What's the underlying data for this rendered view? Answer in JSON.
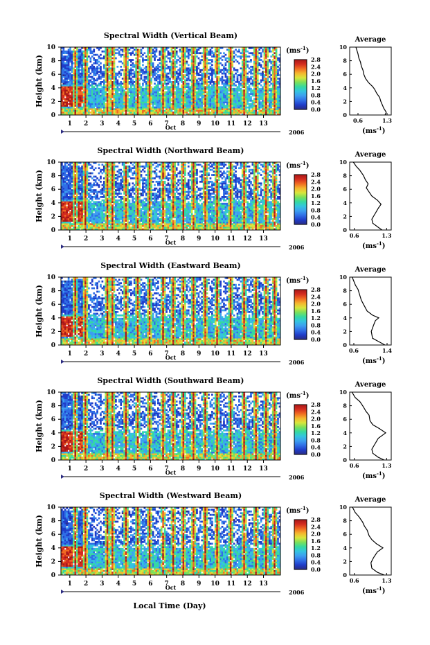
{
  "chart_data": {
    "type": "heatmap",
    "xlabel": "Local Time (Day)",
    "x_ticks": [
      "1",
      "2",
      "3",
      "4",
      "5",
      "6",
      "7",
      "8",
      "9",
      "10",
      "11",
      "12",
      "13"
    ],
    "month_label": "Oct",
    "year_label": "2006",
    "ylabel": "Height (km)",
    "y_ticks": [
      "0",
      "2",
      "4",
      "6",
      "8",
      "10"
    ],
    "ylim": [
      0,
      10
    ],
    "colorbar_unit": "(ms",
    "colorbar_unit_exp": "-1",
    "colorbar_unit_close": ")",
    "colorbar_ticks": [
      "0.0",
      "0.4",
      "0.8",
      "1.2",
      "1.6",
      "2.0",
      "2.4",
      "2.8"
    ],
    "colorbar_range": [
      0,
      2.8
    ],
    "colors": [
      "#2b2b80",
      "#1f3cc8",
      "#2f6ee6",
      "#3d9ef0",
      "#33c4e0",
      "#35d9a0",
      "#7be05a",
      "#d9e63c",
      "#f5b52e",
      "#f06a22",
      "#d42b1f",
      "#a81818"
    ],
    "avg_title": "Average",
    "avg_xlabel": "(ms",
    "avg_xlabel_exp": "-1",
    "avg_xlabel_close": ")",
    "panels": [
      {
        "title": "Spectral Width (Vertical Beam)",
        "avg_xticks": [
          "0.6",
          "1.3"
        ],
        "avg_xlim": [
          0.4,
          1.4
        ],
        "avg_profile": [
          [
            1.25,
            0
          ],
          [
            1.28,
            0.4
          ],
          [
            1.22,
            1.0
          ],
          [
            1.15,
            2.0
          ],
          [
            1.12,
            2.6
          ],
          [
            1.05,
            3.2
          ],
          [
            1.0,
            3.8
          ],
          [
            0.95,
            4.2
          ],
          [
            0.85,
            4.8
          ],
          [
            0.78,
            5.4
          ],
          [
            0.74,
            6.0
          ],
          [
            0.72,
            6.6
          ],
          [
            0.68,
            7.2
          ],
          [
            0.66,
            7.8
          ],
          [
            0.62,
            8.4
          ],
          [
            0.6,
            9.0
          ],
          [
            0.55,
            10
          ]
        ]
      },
      {
        "title": "Spectral Width (Northward Beam)",
        "avg_xticks": [
          "0.6",
          "1.3"
        ],
        "avg_xlim": [
          0.5,
          1.4
        ],
        "avg_profile": [
          [
            1.2,
            0
          ],
          [
            1.12,
            0.4
          ],
          [
            1.0,
            1.0
          ],
          [
            0.98,
            1.6
          ],
          [
            1.05,
            2.4
          ],
          [
            1.12,
            3.2
          ],
          [
            1.18,
            3.8
          ],
          [
            1.1,
            4.4
          ],
          [
            0.98,
            5.0
          ],
          [
            0.92,
            5.6
          ],
          [
            0.86,
            6.2
          ],
          [
            0.9,
            6.8
          ],
          [
            0.84,
            7.4
          ],
          [
            0.8,
            8.0
          ],
          [
            0.72,
            8.8
          ],
          [
            0.64,
            9.4
          ],
          [
            0.58,
            10
          ]
        ]
      },
      {
        "title": "Spectral Width (Eastward Beam)",
        "avg_xticks": [
          "0.6",
          "1.4"
        ],
        "avg_xlim": [
          0.5,
          1.5
        ],
        "avg_profile": [
          [
            1.35,
            0
          ],
          [
            1.2,
            0.5
          ],
          [
            1.05,
            1.0
          ],
          [
            1.02,
            2.0
          ],
          [
            1.08,
            3.0
          ],
          [
            1.12,
            3.6
          ],
          [
            1.2,
            4.0
          ],
          [
            1.05,
            4.4
          ],
          [
            0.92,
            5.0
          ],
          [
            0.85,
            5.8
          ],
          [
            0.78,
            6.6
          ],
          [
            0.74,
            7.4
          ],
          [
            0.7,
            8.2
          ],
          [
            0.64,
            8.8
          ],
          [
            0.6,
            9.4
          ],
          [
            0.56,
            10
          ]
        ]
      },
      {
        "title": "Spectral Width (Southward Beam)",
        "avg_xticks": [
          "0.6",
          "1.3"
        ],
        "avg_xlim": [
          0.5,
          1.4
        ],
        "avg_profile": [
          [
            1.25,
            0
          ],
          [
            1.12,
            0.4
          ],
          [
            1.0,
            1.0
          ],
          [
            0.98,
            1.6
          ],
          [
            1.05,
            2.4
          ],
          [
            1.12,
            3.2
          ],
          [
            1.28,
            4.0
          ],
          [
            1.15,
            4.6
          ],
          [
            1.0,
            5.2
          ],
          [
            0.94,
            5.8
          ],
          [
            0.92,
            6.6
          ],
          [
            0.85,
            7.2
          ],
          [
            0.8,
            7.8
          ],
          [
            0.72,
            8.6
          ],
          [
            0.62,
            9.2
          ],
          [
            0.55,
            10
          ]
        ]
      },
      {
        "title": "Spectral Width (Westward Beam)",
        "avg_xticks": [
          "0.6",
          "1.3"
        ],
        "avg_xlim": [
          0.5,
          1.4
        ],
        "avg_profile": [
          [
            1.25,
            0
          ],
          [
            1.1,
            0.4
          ],
          [
            0.98,
            1.0
          ],
          [
            0.96,
            1.8
          ],
          [
            1.02,
            2.6
          ],
          [
            1.1,
            3.4
          ],
          [
            1.22,
            4.0
          ],
          [
            1.08,
            4.6
          ],
          [
            0.98,
            5.2
          ],
          [
            0.92,
            5.8
          ],
          [
            0.88,
            6.6
          ],
          [
            0.82,
            7.2
          ],
          [
            0.78,
            7.8
          ],
          [
            0.7,
            8.6
          ],
          [
            0.62,
            9.2
          ],
          [
            0.56,
            10
          ]
        ]
      }
    ]
  }
}
